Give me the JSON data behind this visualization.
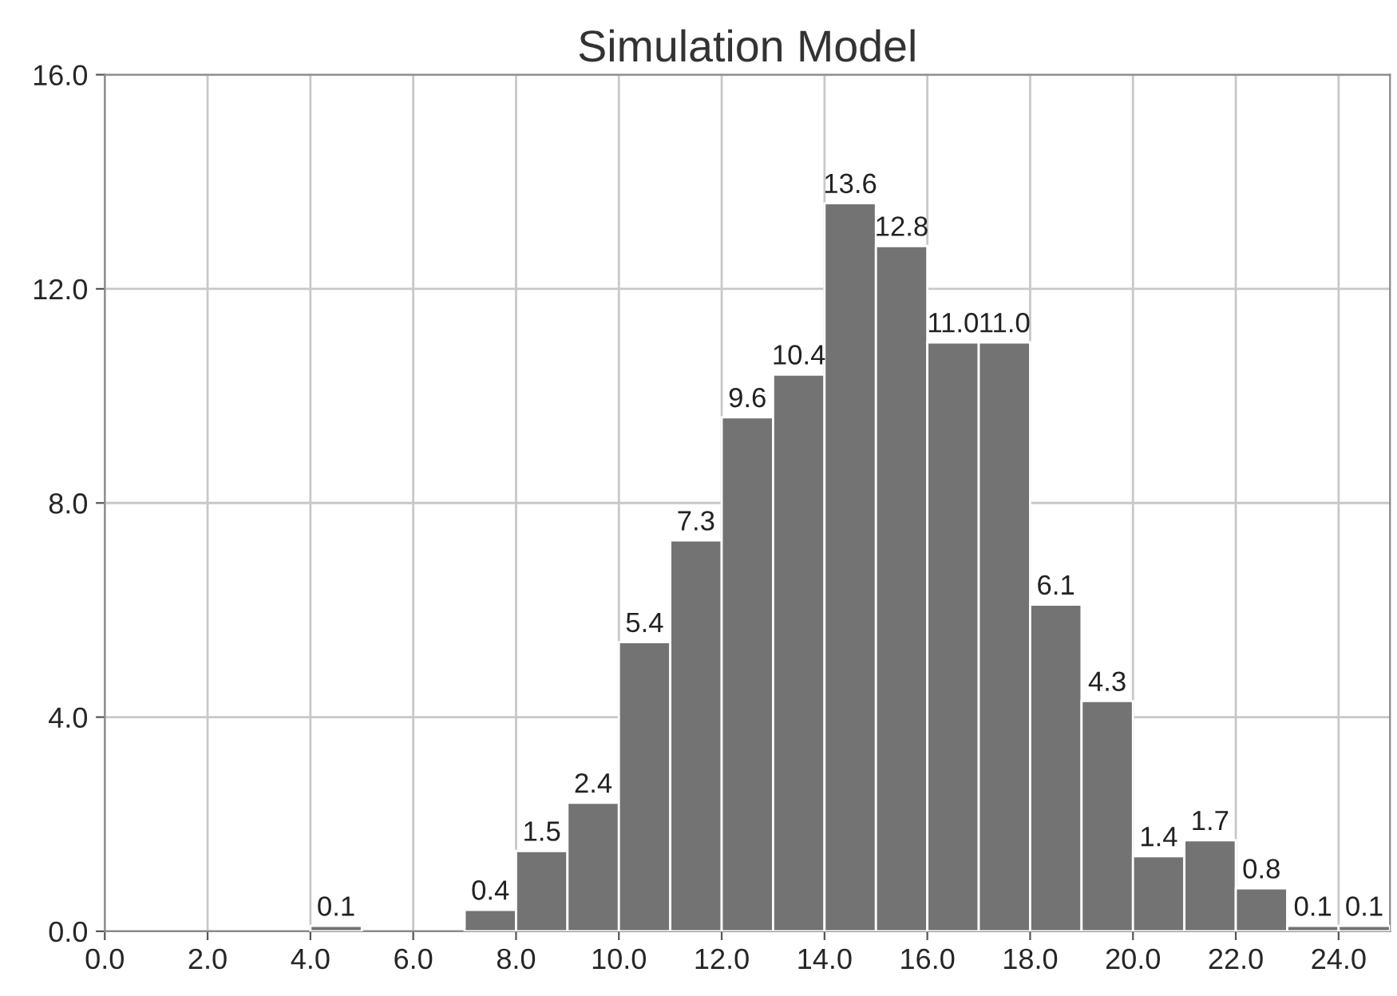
{
  "chart_data": {
    "type": "histogram",
    "title": "Simulation Model",
    "bins": [
      4,
      5,
      6,
      7,
      8,
      9,
      10,
      11,
      12,
      13,
      14,
      15,
      16,
      17,
      18,
      19,
      20,
      21,
      22,
      23,
      24,
      25
    ],
    "values": [
      0.1,
      0,
      0,
      0.4,
      1.5,
      2.4,
      5.4,
      7.3,
      9.6,
      10.4,
      13.6,
      12.8,
      11.0,
      11.0,
      6.1,
      4.3,
      1.4,
      1.7,
      0.8,
      0.1,
      0.1
    ],
    "value_labels": [
      "0.1",
      null,
      null,
      "0.4",
      "1.5",
      "2.4",
      "5.4",
      "7.3",
      "9.6",
      "10.4",
      "13.6",
      "12.8",
      "11.0",
      "11.0",
      "6.1",
      "4.3",
      "1.4",
      "1.7",
      "0.8",
      "0.1",
      "0.1"
    ],
    "color": "#737373",
    "xlim": [
      0,
      25
    ],
    "xticks": [
      {
        "value": 0,
        "label": "0.0"
      },
      {
        "value": 2,
        "label": "2.0"
      },
      {
        "value": 4,
        "label": "4.0"
      },
      {
        "value": 6,
        "label": "6.0"
      },
      {
        "value": 8,
        "label": "8.0"
      },
      {
        "value": 10,
        "label": "10.0"
      },
      {
        "value": 12,
        "label": "12.0"
      },
      {
        "value": 14,
        "label": "14.0"
      },
      {
        "value": 16,
        "label": "16.0"
      },
      {
        "value": 18,
        "label": "18.0"
      },
      {
        "value": 20,
        "label": "20.0"
      },
      {
        "value": 22,
        "label": "22.0"
      },
      {
        "value": 24,
        "label": "24.0"
      }
    ],
    "ylim": [
      0,
      16
    ],
    "yticks": [
      {
        "value": 0,
        "label": "0.0"
      },
      {
        "value": 4,
        "label": "4.0"
      },
      {
        "value": 8,
        "label": "8.0"
      },
      {
        "value": 12,
        "label": "12.0"
      },
      {
        "value": 16,
        "label": "16.0"
      }
    ],
    "grid": true
  }
}
